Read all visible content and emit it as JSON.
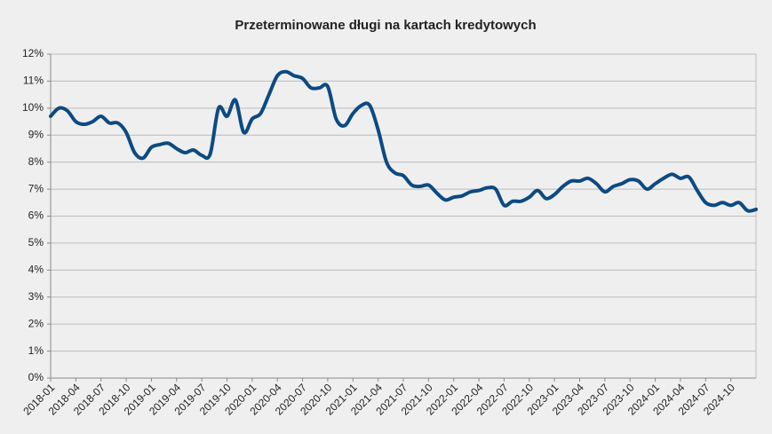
{
  "chart_data": {
    "type": "line",
    "title": "Przeterminowane długi na kartach kredytowych",
    "categories": [
      "2018-01",
      null,
      null,
      "2018-04",
      null,
      null,
      "2018-07",
      null,
      null,
      "2018-10",
      null,
      null,
      "2019-01",
      null,
      null,
      "2019-04",
      null,
      null,
      "2019-07",
      null,
      null,
      "2019-10",
      null,
      null,
      "2020-01",
      null,
      null,
      "2020-04",
      null,
      null,
      "2020-07",
      null,
      null,
      "2020-10",
      null,
      null,
      "2021-01",
      null,
      null,
      "2021-04",
      null,
      null,
      "2021-07",
      null,
      null,
      "2021-10",
      null,
      null,
      "2022-01",
      null,
      null,
      "2022-04",
      null,
      null,
      "2022-07",
      null,
      null,
      "2022-10",
      null,
      null,
      "2023-01",
      null,
      null,
      "2023-04",
      null,
      null,
      "2023-07",
      null,
      null,
      "2023-10",
      null,
      null,
      "2024-01",
      null,
      null,
      "2024-04",
      null,
      null,
      "2024-07",
      null,
      null,
      "2024-10",
      null,
      null,
      null
    ],
    "values": [
      9.7,
      10.0,
      9.9,
      9.5,
      9.4,
      9.5,
      9.7,
      9.45,
      9.45,
      9.1,
      8.35,
      8.15,
      8.55,
      8.65,
      8.7,
      8.5,
      8.35,
      8.45,
      8.25,
      8.3,
      10.0,
      9.7,
      10.3,
      9.1,
      9.6,
      9.8,
      10.5,
      11.2,
      11.35,
      11.2,
      11.1,
      10.75,
      10.75,
      10.8,
      9.6,
      9.35,
      9.8,
      10.1,
      10.1,
      9.2,
      8.0,
      7.6,
      7.5,
      7.15,
      7.1,
      7.15,
      6.85,
      6.6,
      6.7,
      6.75,
      6.9,
      6.95,
      7.05,
      7.0,
      6.4,
      6.55,
      6.55,
      6.7,
      6.95,
      6.65,
      6.8,
      7.1,
      7.3,
      7.3,
      7.4,
      7.2,
      6.9,
      7.1,
      7.2,
      7.35,
      7.3,
      7.0,
      7.2,
      7.4,
      7.55,
      7.4,
      7.45,
      6.95,
      6.5,
      6.4,
      6.5,
      6.4,
      6.5,
      6.2,
      6.25
    ],
    "color": "#0d4a82",
    "ylim": [
      0,
      12
    ],
    "yticks": [
      {
        "value": 0,
        "label": "0%"
      },
      {
        "value": 1,
        "label": "1%"
      },
      {
        "value": 2,
        "label": "2%"
      },
      {
        "value": 3,
        "label": "3%"
      },
      {
        "value": 4,
        "label": "4%"
      },
      {
        "value": 5,
        "label": "5%"
      },
      {
        "value": 6,
        "label": "6%"
      },
      {
        "value": 7,
        "label": "7%"
      },
      {
        "value": 8,
        "label": "8%"
      },
      {
        "value": 9,
        "label": "9%"
      },
      {
        "value": 10,
        "label": "10%"
      },
      {
        "value": 11,
        "label": "11%"
      },
      {
        "value": 12,
        "label": "12%"
      }
    ],
    "grid": true
  }
}
